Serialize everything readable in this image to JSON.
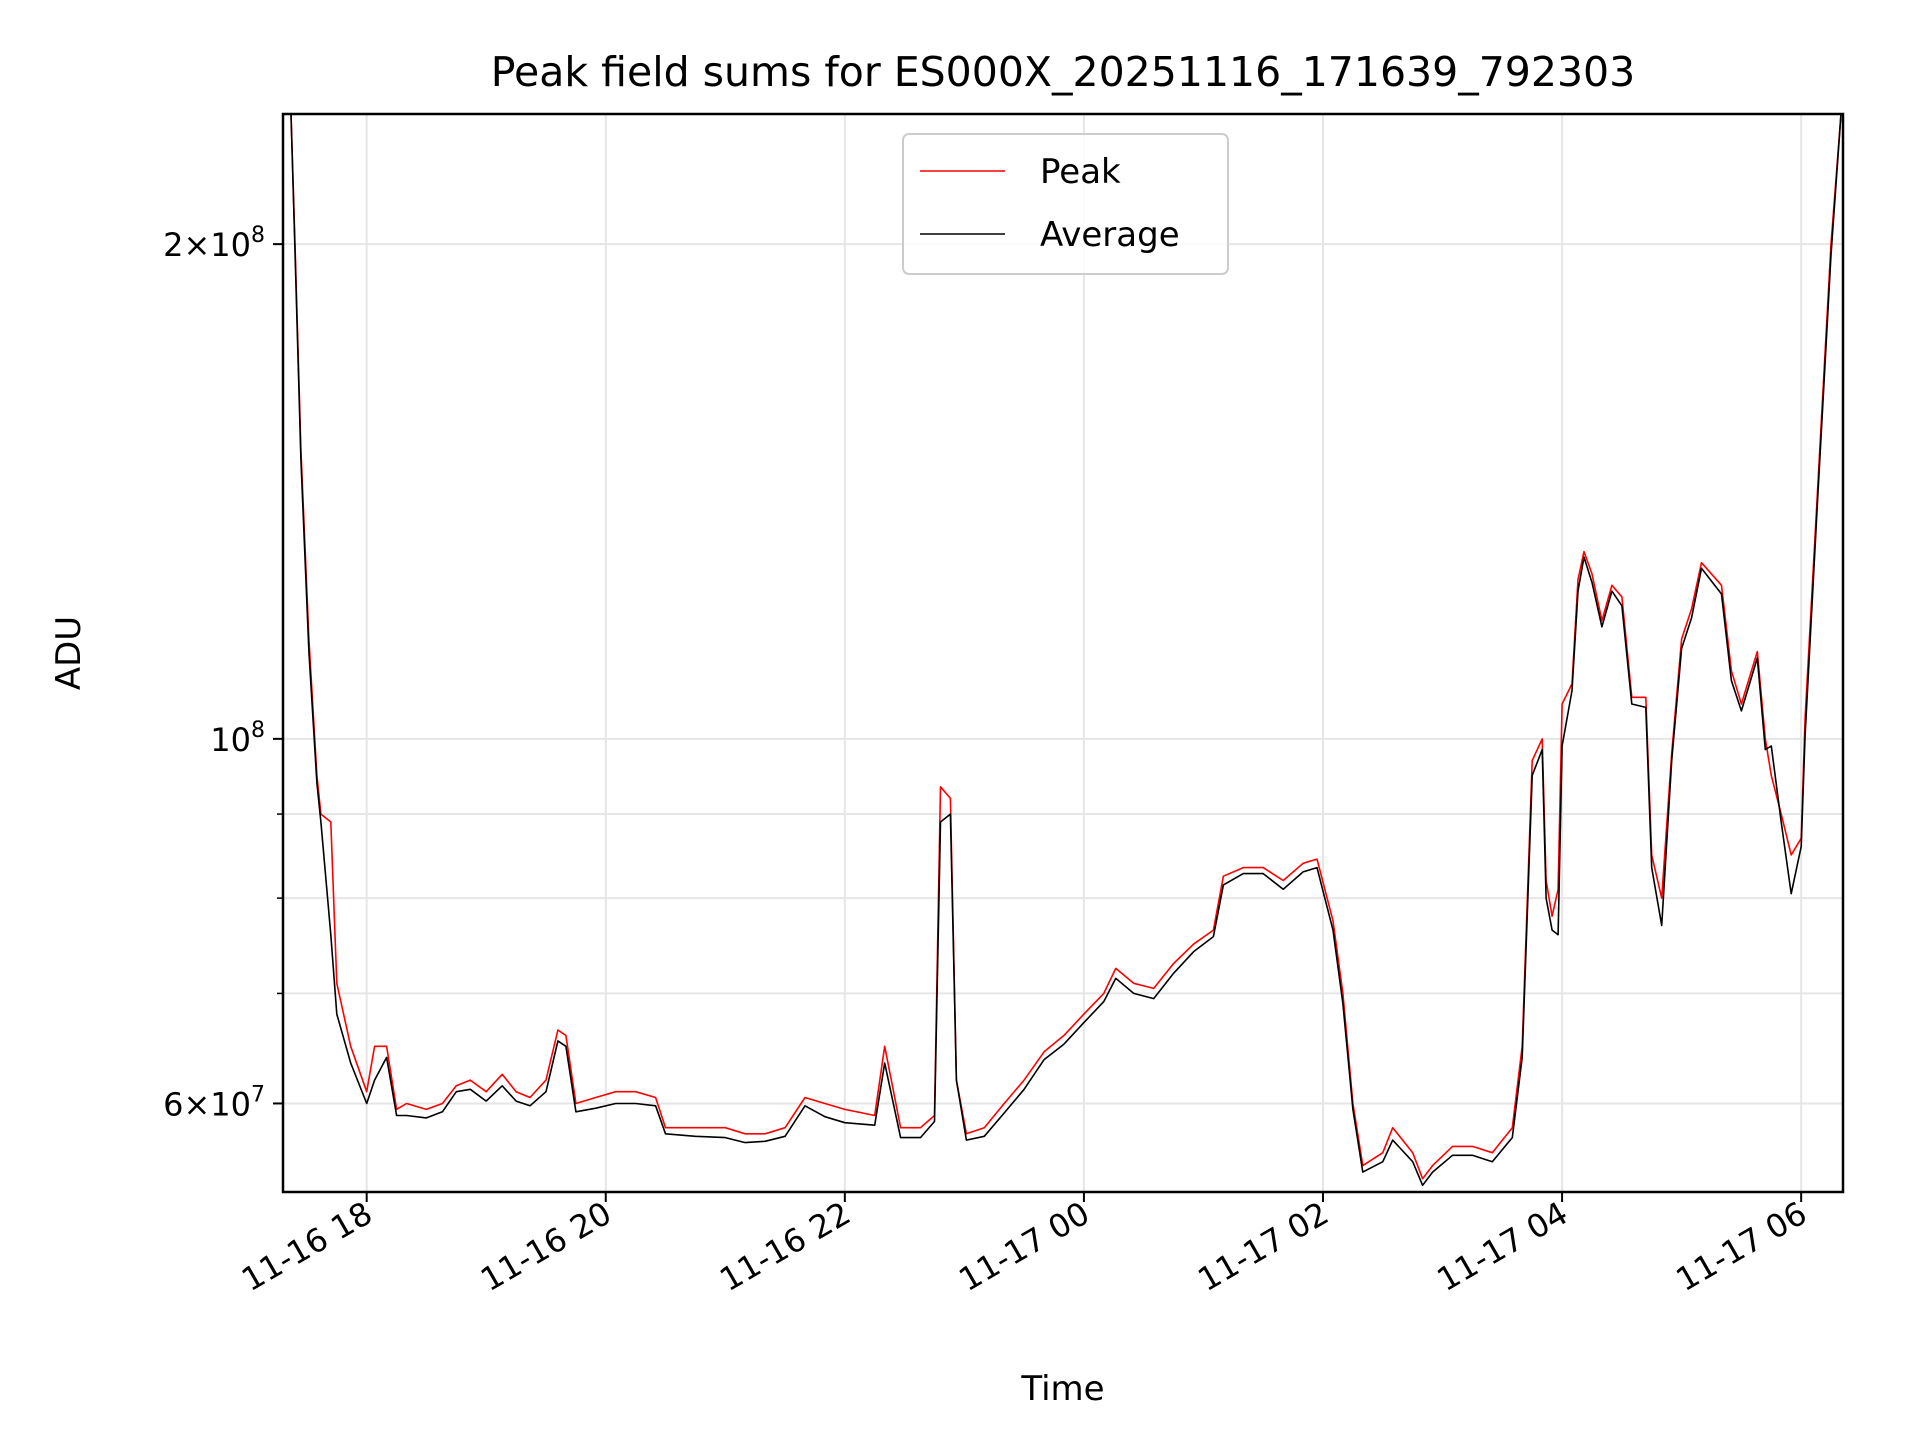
{
  "chart_data": {
    "type": "line",
    "title": "Peak field sums for ES000X_20251116_171639_792303",
    "xlabel": "Time",
    "ylabel": "ADU",
    "y_scale": "log",
    "ylim": [
      53000000,
      240000000
    ],
    "xlim": [
      "2025-11-16 17:18",
      "2025-11-17 06:21"
    ],
    "x_ticks": [
      "2025-11-16 18:00",
      "2025-11-16 20:00",
      "2025-11-16 22:00",
      "2025-11-17 00:00",
      "2025-11-17 02:00",
      "2025-11-17 04:00",
      "2025-11-17 06:00"
    ],
    "x_tick_labels": [
      "11-16 18",
      "11-16 20",
      "11-16 22",
      "11-17 00",
      "11-17 02",
      "11-17 04",
      "11-17 06"
    ],
    "y_major_ticks": [
      60000000,
      100000000,
      200000000
    ],
    "y_major_tick_labels": [
      {
        "mantissa": "6",
        "exponent": "7"
      },
      {
        "mantissa": "",
        "exponent": "8"
      },
      {
        "mantissa": "2",
        "exponent": "8"
      }
    ],
    "y_minor_ticks": [
      70000000,
      80000000,
      90000000
    ],
    "grid": true,
    "legend_position": "top-center",
    "series": [
      {
        "name": "Peak",
        "color": "#ff0000",
        "points": [
          [
            "2025-11-16 17:22",
            240000000
          ],
          [
            "2025-11-16 17:24",
            200000000
          ],
          [
            "2025-11-16 17:27",
            150000000
          ],
          [
            "2025-11-16 17:31",
            115000000
          ],
          [
            "2025-11-16 17:35",
            95000000
          ],
          [
            "2025-11-16 17:37",
            90000000
          ],
          [
            "2025-11-16 17:42",
            89000000
          ],
          [
            "2025-11-16 17:45",
            71000000
          ],
          [
            "2025-11-16 17:52",
            65000000
          ],
          [
            "2025-11-16 18:00",
            61000000
          ],
          [
            "2025-11-16 18:04",
            65000000
          ],
          [
            "2025-11-16 18:10",
            65000000
          ],
          [
            "2025-11-16 18:15",
            59500000
          ],
          [
            "2025-11-16 18:20",
            60000000
          ],
          [
            "2025-11-16 18:30",
            59500000
          ],
          [
            "2025-11-16 18:38",
            60000000
          ],
          [
            "2025-11-16 18:45",
            61500000
          ],
          [
            "2025-11-16 18:52",
            62000000
          ],
          [
            "2025-11-16 19:00",
            61000000
          ],
          [
            "2025-11-16 19:08",
            62500000
          ],
          [
            "2025-11-16 19:15",
            61000000
          ],
          [
            "2025-11-16 19:22",
            60500000
          ],
          [
            "2025-11-16 19:30",
            62000000
          ],
          [
            "2025-11-16 19:36",
            66500000
          ],
          [
            "2025-11-16 19:40",
            66000000
          ],
          [
            "2025-11-16 19:45",
            60000000
          ],
          [
            "2025-11-16 19:55",
            60500000
          ],
          [
            "2025-11-16 20:05",
            61000000
          ],
          [
            "2025-11-16 20:15",
            61000000
          ],
          [
            "2025-11-16 20:25",
            60500000
          ],
          [
            "2025-11-16 20:30",
            58000000
          ],
          [
            "2025-11-16 20:45",
            58000000
          ],
          [
            "2025-11-16 21:00",
            58000000
          ],
          [
            "2025-11-16 21:10",
            57500000
          ],
          [
            "2025-11-16 21:20",
            57500000
          ],
          [
            "2025-11-16 21:30",
            58000000
          ],
          [
            "2025-11-16 21:40",
            60500000
          ],
          [
            "2025-11-16 21:50",
            60000000
          ],
          [
            "2025-11-16 22:00",
            59500000
          ],
          [
            "2025-11-16 22:15",
            59000000
          ],
          [
            "2025-11-16 22:20",
            65000000
          ],
          [
            "2025-11-16 22:28",
            58000000
          ],
          [
            "2025-11-16 22:38",
            58000000
          ],
          [
            "2025-11-16 22:45",
            59000000
          ],
          [
            "2025-11-16 22:48",
            93500000
          ],
          [
            "2025-11-16 22:53",
            92000000
          ],
          [
            "2025-11-16 22:56",
            62000000
          ],
          [
            "2025-11-16 23:01",
            57500000
          ],
          [
            "2025-11-16 23:10",
            58000000
          ],
          [
            "2025-11-16 23:20",
            60000000
          ],
          [
            "2025-11-16 23:30",
            62000000
          ],
          [
            "2025-11-16 23:40",
            64500000
          ],
          [
            "2025-11-16 23:50",
            66000000
          ],
          [
            "2025-11-17 00:00",
            68000000
          ],
          [
            "2025-11-17 00:10",
            70000000
          ],
          [
            "2025-11-17 00:16",
            72500000
          ],
          [
            "2025-11-17 00:25",
            71000000
          ],
          [
            "2025-11-17 00:35",
            70500000
          ],
          [
            "2025-11-17 00:45",
            73000000
          ],
          [
            "2025-11-17 00:55",
            75000000
          ],
          [
            "2025-11-17 01:05",
            76500000
          ],
          [
            "2025-11-17 01:10",
            82500000
          ],
          [
            "2025-11-17 01:20",
            83500000
          ],
          [
            "2025-11-17 01:30",
            83500000
          ],
          [
            "2025-11-17 01:40",
            82000000
          ],
          [
            "2025-11-17 01:50",
            84000000
          ],
          [
            "2025-11-17 01:57",
            84500000
          ],
          [
            "2025-11-17 02:05",
            77500000
          ],
          [
            "2025-11-17 02:10",
            70000000
          ],
          [
            "2025-11-17 02:15",
            60000000
          ],
          [
            "2025-11-17 02:20",
            55000000
          ],
          [
            "2025-11-17 02:30",
            56000000
          ],
          [
            "2025-11-17 02:35",
            58000000
          ],
          [
            "2025-11-17 02:45",
            56000000
          ],
          [
            "2025-11-17 02:50",
            54000000
          ],
          [
            "2025-11-17 02:55",
            55000000
          ],
          [
            "2025-11-17 03:05",
            56500000
          ],
          [
            "2025-11-17 03:15",
            56500000
          ],
          [
            "2025-11-17 03:25",
            56000000
          ],
          [
            "2025-11-17 03:35",
            58000000
          ],
          [
            "2025-11-17 03:40",
            65000000
          ],
          [
            "2025-11-17 03:45",
            97000000
          ],
          [
            "2025-11-17 03:50",
            100000000
          ],
          [
            "2025-11-17 03:52",
            82000000
          ],
          [
            "2025-11-17 03:55",
            78000000
          ],
          [
            "2025-11-17 03:58",
            81000000
          ],
          [
            "2025-11-17 04:00",
            105000000
          ],
          [
            "2025-11-17 04:05",
            108000000
          ],
          [
            "2025-11-17 04:08",
            125000000
          ],
          [
            "2025-11-17 04:11",
            130000000
          ],
          [
            "2025-11-17 04:15",
            126000000
          ],
          [
            "2025-11-17 04:20",
            118000000
          ],
          [
            "2025-11-17 04:25",
            124000000
          ],
          [
            "2025-11-17 04:30",
            122000000
          ],
          [
            "2025-11-17 04:35",
            106000000
          ],
          [
            "2025-11-17 04:42",
            106000000
          ],
          [
            "2025-11-17 04:45",
            85000000
          ],
          [
            "2025-11-17 04:50",
            80000000
          ],
          [
            "2025-11-17 04:55",
            98000000
          ],
          [
            "2025-11-17 05:00",
            115000000
          ],
          [
            "2025-11-17 05:05",
            120000000
          ],
          [
            "2025-11-17 05:10",
            128000000
          ],
          [
            "2025-11-17 05:20",
            124000000
          ],
          [
            "2025-11-17 05:25",
            110000000
          ],
          [
            "2025-11-17 05:30",
            105000000
          ],
          [
            "2025-11-17 05:38",
            113000000
          ],
          [
            "2025-11-17 05:42",
            100000000
          ],
          [
            "2025-11-17 05:45",
            95000000
          ],
          [
            "2025-11-17 05:50",
            90000000
          ],
          [
            "2025-11-17 05:55",
            85000000
          ],
          [
            "2025-11-17 06:00",
            87000000
          ],
          [
            "2025-11-17 06:02",
            103000000
          ],
          [
            "2025-11-17 06:08",
            140000000
          ],
          [
            "2025-11-17 06:15",
            200000000
          ],
          [
            "2025-11-17 06:20",
            240000000
          ]
        ]
      },
      {
        "name": "Average",
        "color": "#000000",
        "points": [
          [
            "2025-11-16 17:22",
            240000000
          ],
          [
            "2025-11-16 17:24",
            198000000
          ],
          [
            "2025-11-16 17:27",
            148000000
          ],
          [
            "2025-11-16 17:31",
            113000000
          ],
          [
            "2025-11-16 17:35",
            94000000
          ],
          [
            "2025-11-16 17:37",
            89000000
          ],
          [
            "2025-11-16 17:42",
            76000000
          ],
          [
            "2025-11-16 17:45",
            68000000
          ],
          [
            "2025-11-16 17:52",
            63500000
          ],
          [
            "2025-11-16 18:00",
            60000000
          ],
          [
            "2025-11-16 18:04",
            62000000
          ],
          [
            "2025-11-16 18:10",
            64000000
          ],
          [
            "2025-11-16 18:15",
            59000000
          ],
          [
            "2025-11-16 18:20",
            59000000
          ],
          [
            "2025-11-16 18:30",
            58800000
          ],
          [
            "2025-11-16 18:38",
            59300000
          ],
          [
            "2025-11-16 18:45",
            61000000
          ],
          [
            "2025-11-16 18:52",
            61200000
          ],
          [
            "2025-11-16 19:00",
            60200000
          ],
          [
            "2025-11-16 19:08",
            61500000
          ],
          [
            "2025-11-16 19:15",
            60200000
          ],
          [
            "2025-11-16 19:22",
            59800000
          ],
          [
            "2025-11-16 19:30",
            61000000
          ],
          [
            "2025-11-16 19:36",
            65500000
          ],
          [
            "2025-11-16 19:40",
            65000000
          ],
          [
            "2025-11-16 19:45",
            59300000
          ],
          [
            "2025-11-16 19:55",
            59600000
          ],
          [
            "2025-11-16 20:05",
            60000000
          ],
          [
            "2025-11-16 20:15",
            60000000
          ],
          [
            "2025-11-16 20:25",
            59800000
          ],
          [
            "2025-11-16 20:30",
            57500000
          ],
          [
            "2025-11-16 20:45",
            57300000
          ],
          [
            "2025-11-16 21:00",
            57200000
          ],
          [
            "2025-11-16 21:10",
            56800000
          ],
          [
            "2025-11-16 21:20",
            56900000
          ],
          [
            "2025-11-16 21:30",
            57300000
          ],
          [
            "2025-11-16 21:40",
            59800000
          ],
          [
            "2025-11-16 21:50",
            58900000
          ],
          [
            "2025-11-16 22:00",
            58400000
          ],
          [
            "2025-11-16 22:15",
            58200000
          ],
          [
            "2025-11-16 22:20",
            63500000
          ],
          [
            "2025-11-16 22:28",
            57200000
          ],
          [
            "2025-11-16 22:38",
            57200000
          ],
          [
            "2025-11-16 22:45",
            58500000
          ],
          [
            "2025-11-16 22:48",
            89000000
          ],
          [
            "2025-11-16 22:53",
            90000000
          ],
          [
            "2025-11-16 22:56",
            62000000
          ],
          [
            "2025-11-16 23:01",
            57000000
          ],
          [
            "2025-11-16 23:10",
            57300000
          ],
          [
            "2025-11-16 23:20",
            59200000
          ],
          [
            "2025-11-16 23:30",
            61200000
          ],
          [
            "2025-11-16 23:40",
            63800000
          ],
          [
            "2025-11-16 23:50",
            65200000
          ],
          [
            "2025-11-17 00:00",
            67200000
          ],
          [
            "2025-11-17 00:10",
            69200000
          ],
          [
            "2025-11-17 00:16",
            71500000
          ],
          [
            "2025-11-17 00:25",
            70000000
          ],
          [
            "2025-11-17 00:35",
            69500000
          ],
          [
            "2025-11-17 00:45",
            72000000
          ],
          [
            "2025-11-17 00:55",
            74200000
          ],
          [
            "2025-11-17 01:05",
            75800000
          ],
          [
            "2025-11-17 01:10",
            81500000
          ],
          [
            "2025-11-17 01:20",
            82800000
          ],
          [
            "2025-11-17 01:30",
            82800000
          ],
          [
            "2025-11-17 01:40",
            81000000
          ],
          [
            "2025-11-17 01:50",
            83000000
          ],
          [
            "2025-11-17 01:57",
            83500000
          ],
          [
            "2025-11-17 02:05",
            76500000
          ],
          [
            "2025-11-17 02:10",
            69000000
          ],
          [
            "2025-11-17 02:15",
            59500000
          ],
          [
            "2025-11-17 02:20",
            54500000
          ],
          [
            "2025-11-17 02:30",
            55300000
          ],
          [
            "2025-11-17 02:35",
            57000000
          ],
          [
            "2025-11-17 02:45",
            55300000
          ],
          [
            "2025-11-17 02:50",
            53500000
          ],
          [
            "2025-11-17 02:55",
            54500000
          ],
          [
            "2025-11-17 03:05",
            55800000
          ],
          [
            "2025-11-17 03:15",
            55800000
          ],
          [
            "2025-11-17 03:25",
            55300000
          ],
          [
            "2025-11-17 03:35",
            57200000
          ],
          [
            "2025-11-17 03:40",
            64000000
          ],
          [
            "2025-11-17 03:45",
            95000000
          ],
          [
            "2025-11-17 03:50",
            98500000
          ],
          [
            "2025-11-17 03:52",
            80000000
          ],
          [
            "2025-11-17 03:55",
            76500000
          ],
          [
            "2025-11-17 03:58",
            76000000
          ],
          [
            "2025-11-17 04:00",
            99000000
          ],
          [
            "2025-11-17 04:05",
            107000000
          ],
          [
            "2025-11-17 04:08",
            123000000
          ],
          [
            "2025-11-17 04:11",
            129000000
          ],
          [
            "2025-11-17 04:15",
            124500000
          ],
          [
            "2025-11-17 04:20",
            117000000
          ],
          [
            "2025-11-17 04:25",
            123000000
          ],
          [
            "2025-11-17 04:30",
            120500000
          ],
          [
            "2025-11-17 04:35",
            105000000
          ],
          [
            "2025-11-17 04:42",
            104500000
          ],
          [
            "2025-11-17 04:45",
            83500000
          ],
          [
            "2025-11-17 04:50",
            77000000
          ],
          [
            "2025-11-17 04:55",
            97000000
          ],
          [
            "2025-11-17 05:00",
            113500000
          ],
          [
            "2025-11-17 05:05",
            118500000
          ],
          [
            "2025-11-17 05:10",
            127000000
          ],
          [
            "2025-11-17 05:20",
            122500000
          ],
          [
            "2025-11-17 05:25",
            108500000
          ],
          [
            "2025-11-17 05:30",
            104000000
          ],
          [
            "2025-11-17 05:38",
            112000000
          ],
          [
            "2025-11-17 05:42",
            98500000
          ],
          [
            "2025-11-17 05:45",
            99000000
          ],
          [
            "2025-11-17 05:50",
            89000000
          ],
          [
            "2025-11-17 05:55",
            80500000
          ],
          [
            "2025-11-17 06:00",
            86000000
          ],
          [
            "2025-11-17 06:02",
            100500000
          ],
          [
            "2025-11-17 06:08",
            138000000
          ],
          [
            "2025-11-17 06:15",
            197000000
          ],
          [
            "2025-11-17 06:20",
            240000000
          ]
        ]
      }
    ]
  }
}
